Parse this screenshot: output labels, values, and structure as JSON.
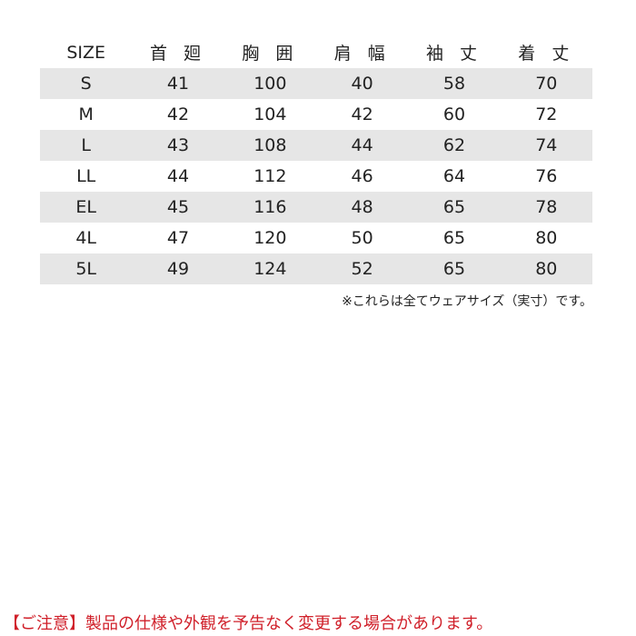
{
  "table": {
    "headers": [
      "SIZE",
      "首 廻",
      "胸 囲",
      "肩 幅",
      "袖 丈",
      "着 丈"
    ],
    "rows": [
      [
        "S",
        "41",
        "100",
        "40",
        "58",
        "70"
      ],
      [
        "M",
        "42",
        "104",
        "42",
        "60",
        "72"
      ],
      [
        "L",
        "43",
        "108",
        "44",
        "62",
        "74"
      ],
      [
        "LL",
        "44",
        "112",
        "46",
        "64",
        "76"
      ],
      [
        "EL",
        "45",
        "116",
        "48",
        "65",
        "78"
      ],
      [
        "4L",
        "47",
        "120",
        "50",
        "65",
        "80"
      ],
      [
        "5L",
        "49",
        "124",
        "52",
        "65",
        "80"
      ]
    ]
  },
  "note": "※これらは全てウェアサイズ（実寸）です。",
  "warning": "【ご注意】製品の仕様や外観を予告なく変更する場合があります。",
  "colors": {
    "row_shade": "#e6e6e6",
    "warning": "#d0202a"
  }
}
